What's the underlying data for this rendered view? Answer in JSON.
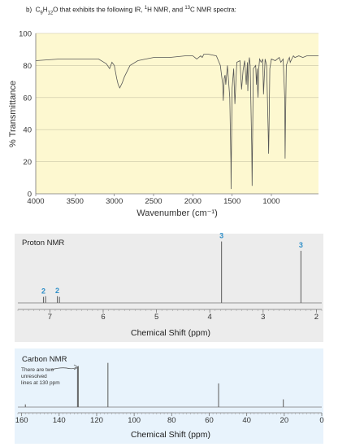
{
  "question": {
    "prefix": "b)",
    "formula_c": "C",
    "formula_c_sub": "9",
    "formula_h": "H",
    "formula_h_sub": "12",
    "formula_o": "O",
    "text": "that exhibits the following IR,",
    "h_sup": "1",
    "h_nmr": "H NMR, and",
    "c_sup": "13",
    "c_nmr": "C NMR spectra:"
  },
  "chart_data": [
    {
      "type": "line",
      "name": "ir",
      "xlabel": "Wavenumber (cm⁻¹)",
      "ylabel": "% Transmittance",
      "xlim": [
        4000,
        400
      ],
      "ylim": [
        0,
        100
      ],
      "x_ticks": [
        "4000",
        "3500",
        "3000",
        "2500",
        "2000",
        "1500",
        "1000"
      ],
      "y_ticks": [
        "0",
        "20",
        "40",
        "60",
        "80",
        "100"
      ],
      "background": "#fdf8d0",
      "line_color": "#555555",
      "x": [
        4000,
        3700,
        3200,
        3100,
        3060,
        3030,
        3000,
        2970,
        2950,
        2930,
        2900,
        2870,
        2840,
        2800,
        2700,
        2600,
        2500,
        2300,
        2100,
        2000,
        1950,
        1900,
        1880,
        1860,
        1800,
        1700,
        1650,
        1620,
        1612,
        1600,
        1590,
        1580,
        1560,
        1530,
        1515,
        1513,
        1510,
        1500,
        1480,
        1465,
        1460,
        1450,
        1440,
        1400,
        1380,
        1360,
        1340,
        1320,
        1305,
        1300,
        1290,
        1280,
        1270,
        1250,
        1245,
        1240,
        1230,
        1200,
        1190,
        1180,
        1175,
        1170,
        1160,
        1150,
        1130,
        1110,
        1100,
        1080,
        1060,
        1040,
        1035,
        1030,
        1020,
        1000,
        950,
        900,
        880,
        850,
        830,
        825,
        820,
        810,
        790,
        770,
        760,
        740,
        720,
        700,
        650,
        600,
        550,
        500,
        450,
        400
      ],
      "y": [
        83,
        84,
        84,
        81,
        78,
        82,
        80,
        72,
        68,
        66,
        69,
        73,
        76,
        80,
        83,
        84,
        85,
        85,
        86,
        86,
        84,
        86,
        85,
        87,
        87,
        86,
        80,
        68,
        58,
        72,
        74,
        68,
        80,
        60,
        20,
        3,
        20,
        66,
        78,
        56,
        60,
        72,
        82,
        83,
        65,
        77,
        83,
        68,
        82,
        64,
        80,
        85,
        80,
        30,
        5,
        30,
        78,
        80,
        68,
        78,
        65,
        60,
        78,
        84,
        82,
        84,
        62,
        84,
        80,
        38,
        25,
        40,
        78,
        84,
        83,
        85,
        82,
        84,
        60,
        22,
        45,
        80,
        83,
        85,
        82,
        84,
        86,
        85,
        86,
        85,
        86,
        86,
        86,
        86
      ]
    },
    {
      "type": "line",
      "name": "proton_nmr",
      "title": "Proton NMR",
      "xlabel": "Chemical Shift (ppm)",
      "xlim": [
        7.6,
        1.9
      ],
      "x_ticks": [
        "7",
        "6",
        "5",
        "4",
        "3",
        "2"
      ],
      "background": "#ececec",
      "peaks": [
        {
          "shift": 7.12,
          "height": 0.09,
          "integration": "2"
        },
        {
          "shift": 7.08,
          "height": 0.1
        },
        {
          "shift": 6.86,
          "height": 0.1,
          "integration": "2"
        },
        {
          "shift": 6.82,
          "height": 0.09
        },
        {
          "shift": 3.78,
          "height": 0.92,
          "integration": "3"
        },
        {
          "shift": 2.29,
          "height": 0.78,
          "integration": "3"
        }
      ],
      "integration_color": "#2f8fc9"
    },
    {
      "type": "line",
      "name": "carbon_nmr",
      "title": "Carbon NMR",
      "xlabel": "Chemical Shift (ppm)",
      "xlim": [
        162,
        0
      ],
      "x_ticks": [
        "160",
        "140",
        "120",
        "100",
        "80",
        "60",
        "40",
        "20",
        "0"
      ],
      "background": "#e8f3fc",
      "annotation": "There are two unresolved lines at 130 ppm",
      "annotation_lines": [
        "There are two",
        "unresolved",
        "lines at 130 ppm"
      ],
      "peaks": [
        {
          "shift": 158,
          "height": 0.06
        },
        {
          "shift": 130.2,
          "height": 0.88
        },
        {
          "shift": 129.8,
          "height": 0.9
        },
        {
          "shift": 114,
          "height": 0.97
        },
        {
          "shift": 55,
          "height": 0.52
        },
        {
          "shift": 20.5,
          "height": 0.17
        }
      ]
    }
  ]
}
